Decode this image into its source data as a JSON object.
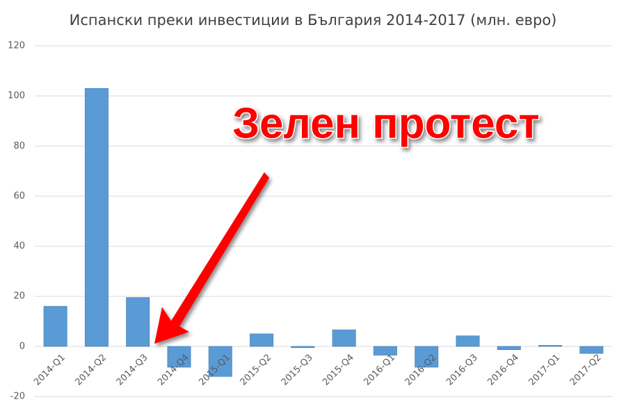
{
  "chart_data": {
    "type": "bar",
    "title": "Испански преки инвестиции в България 2014-2017 (млн. евро)",
    "annotation": "Зелен протест",
    "categories": [
      "2014-Q1",
      "2014-Q2",
      "2014-Q3",
      "2014-Q4",
      "2015-Q1",
      "2015-Q2",
      "2015-Q3",
      "2015-Q4",
      "2016-Q1",
      "2016-Q2",
      "2016-Q3",
      "2016-Q4",
      "2017-Q1",
      "2017-Q2"
    ],
    "values": [
      16,
      103,
      19.5,
      -8.3,
      -12,
      5,
      -0.5,
      6.6,
      -3.5,
      -8.3,
      4.2,
      -1.3,
      0.4,
      -2.8
    ],
    "color": "#5b9bd5",
    "ylim": [
      -20,
      120
    ],
    "yticks": [
      -20,
      0,
      20,
      40,
      60,
      80,
      100,
      120
    ],
    "grid": true
  }
}
